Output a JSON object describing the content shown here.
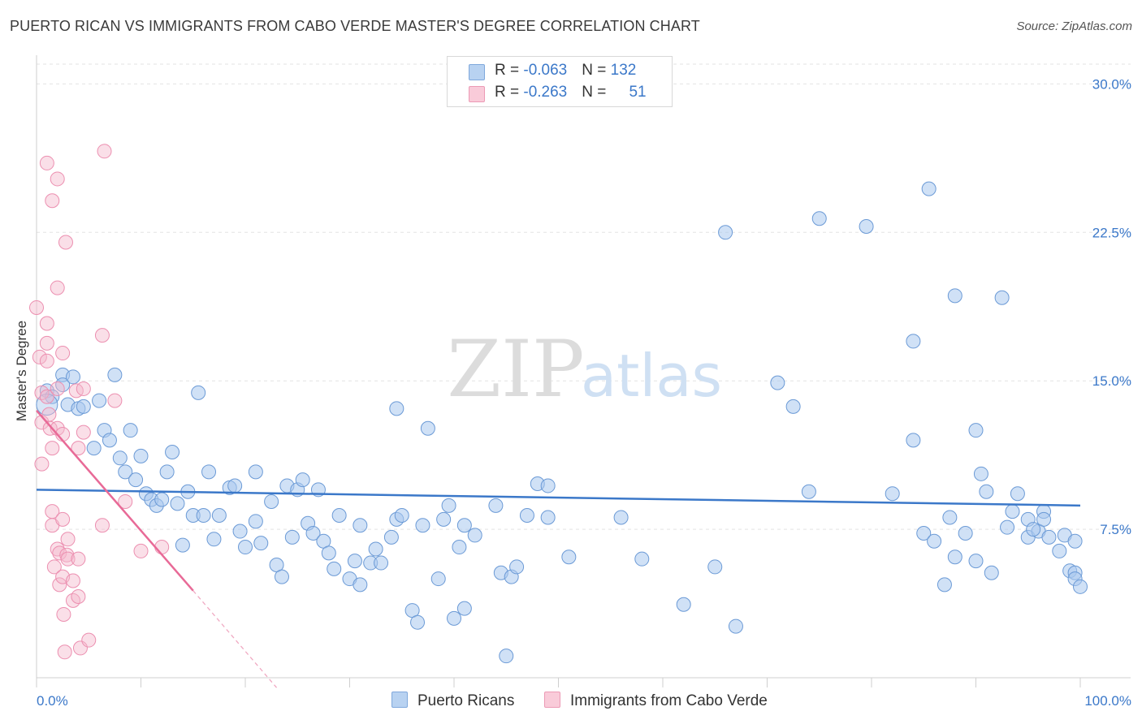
{
  "title": "PUERTO RICAN VS IMMIGRANTS FROM CABO VERDE MASTER'S DEGREE CORRELATION CHART",
  "source": "Source: ZipAtlas.com",
  "watermark": {
    "zip": "ZIP",
    "atlas": "atlas"
  },
  "colors": {
    "blue": "#3b78c9",
    "blue_fill": "#a9c8ee",
    "pink": "#e86a97",
    "pink_fill": "#f5b8cb"
  },
  "legend": {
    "rows": [
      {
        "r_label": "R = ",
        "r_value": "-0.063",
        "n_label": "N = ",
        "n_value": "132"
      },
      {
        "r_label": "R = ",
        "r_value": "-0.263",
        "n_label": "N = ",
        "n_value": "51"
      }
    ]
  },
  "bottom_legend": {
    "series1": "Puerto Ricans",
    "series2": "Immigrants from Cabo Verde"
  },
  "chart_data": {
    "type": "scatter",
    "title": "PUERTO RICAN VS IMMIGRANTS FROM CABO VERDE MASTER'S DEGREE CORRELATION CHART",
    "xlabel": "",
    "ylabel": "Master's Degree",
    "xlim": [
      0,
      100
    ],
    "ylim": [
      0,
      31
    ],
    "x_tick_labels": {
      "min": "0.0%",
      "max": "100.0%"
    },
    "y_ticks": [
      7.5,
      15.0,
      22.5,
      30.0
    ],
    "y_tick_labels": [
      "7.5%",
      "15.0%",
      "22.5%",
      "30.0%"
    ],
    "grid": true,
    "series": [
      {
        "name": "Puerto Ricans",
        "R": -0.063,
        "N": 132,
        "trend": {
          "x": [
            0,
            100
          ],
          "y": [
            9.5,
            8.7
          ]
        },
        "points": [
          [
            1,
            14.5
          ],
          [
            1.5,
            14.2
          ],
          [
            2.5,
            15.3
          ],
          [
            2.5,
            14.8
          ],
          [
            3,
            13.8
          ],
          [
            3.5,
            15.2
          ],
          [
            4,
            13.6
          ],
          [
            4.5,
            13.7
          ],
          [
            5.5,
            11.6
          ],
          [
            6,
            14.0
          ],
          [
            6.5,
            12.5
          ],
          [
            7,
            12.0
          ],
          [
            7.5,
            15.3
          ],
          [
            8,
            11.1
          ],
          [
            8.5,
            10.4
          ],
          [
            9,
            12.5
          ],
          [
            9.5,
            10.0
          ],
          [
            10,
            11.2
          ],
          [
            10.5,
            9.3
          ],
          [
            11,
            9.0
          ],
          [
            11.5,
            8.7
          ],
          [
            12,
            9.0
          ],
          [
            12.5,
            10.4
          ],
          [
            13,
            11.4
          ],
          [
            13.5,
            8.8
          ],
          [
            14,
            6.7
          ],
          [
            14.5,
            9.4
          ],
          [
            15,
            8.2
          ],
          [
            15.5,
            14.4
          ],
          [
            16,
            8.2
          ],
          [
            16.5,
            10.4
          ],
          [
            17,
            7.0
          ],
          [
            17.5,
            8.2
          ],
          [
            18.5,
            9.6
          ],
          [
            19,
            9.7
          ],
          [
            19.5,
            7.4
          ],
          [
            20,
            6.6
          ],
          [
            21,
            7.9
          ],
          [
            21.5,
            6.8
          ],
          [
            21,
            10.4
          ],
          [
            22.5,
            8.9
          ],
          [
            23,
            5.7
          ],
          [
            23.5,
            5.1
          ],
          [
            24,
            9.7
          ],
          [
            24.5,
            7.1
          ],
          [
            25,
            9.5
          ],
          [
            25.5,
            10.0
          ],
          [
            26,
            7.8
          ],
          [
            26.5,
            7.3
          ],
          [
            27,
            9.5
          ],
          [
            27.5,
            6.9
          ],
          [
            28,
            6.3
          ],
          [
            28.5,
            5.5
          ],
          [
            29,
            8.2
          ],
          [
            30,
            5.0
          ],
          [
            30.5,
            5.9
          ],
          [
            31,
            4.7
          ],
          [
            31,
            7.7
          ],
          [
            32,
            5.8
          ],
          [
            32.5,
            6.5
          ],
          [
            33,
            5.8
          ],
          [
            34,
            7.1
          ],
          [
            34.5,
            8.0
          ],
          [
            34.5,
            13.6
          ],
          [
            35,
            8.2
          ],
          [
            36,
            3.4
          ],
          [
            36.5,
            2.8
          ],
          [
            37,
            7.7
          ],
          [
            37.5,
            12.6
          ],
          [
            38.5,
            5.0
          ],
          [
            39,
            8.0
          ],
          [
            39.5,
            8.7
          ],
          [
            40,
            3.0
          ],
          [
            40.5,
            6.6
          ],
          [
            41,
            7.7
          ],
          [
            41,
            3.5
          ],
          [
            42,
            7.2
          ],
          [
            44,
            8.7
          ],
          [
            44.5,
            5.3
          ],
          [
            45,
            1.1
          ],
          [
            45.5,
            5.1
          ],
          [
            46,
            5.6
          ],
          [
            47,
            8.2
          ],
          [
            48,
            9.8
          ],
          [
            49,
            9.7
          ],
          [
            49,
            8.1
          ],
          [
            51,
            6.1
          ],
          [
            56,
            8.1
          ],
          [
            58,
            6.0
          ],
          [
            62,
            3.7
          ],
          [
            65,
            5.6
          ],
          [
            66,
            22.5
          ],
          [
            67,
            2.6
          ],
          [
            71,
            14.9
          ],
          [
            72.5,
            13.7
          ],
          [
            74,
            9.4
          ],
          [
            75,
            23.2
          ],
          [
            79.5,
            22.8
          ],
          [
            82,
            9.3
          ],
          [
            84,
            17.0
          ],
          [
            84,
            12.0
          ],
          [
            85,
            7.3
          ],
          [
            85.5,
            24.7
          ],
          [
            86,
            6.9
          ],
          [
            87,
            4.7
          ],
          [
            87.5,
            8.1
          ],
          [
            88,
            6.1
          ],
          [
            88,
            19.3
          ],
          [
            89,
            7.3
          ],
          [
            90,
            12.5
          ],
          [
            90.5,
            10.3
          ],
          [
            91,
            9.4
          ],
          [
            91.5,
            5.3
          ],
          [
            93,
            7.6
          ],
          [
            93.5,
            8.4
          ],
          [
            94,
            9.3
          ],
          [
            95,
            7.1
          ],
          [
            95,
            8.0
          ],
          [
            96,
            7.4
          ],
          [
            96.5,
            8.4
          ],
          [
            97,
            7.1
          ],
          [
            98,
            6.4
          ],
          [
            99,
            5.4
          ],
          [
            99.5,
            5.3
          ],
          [
            99.5,
            5.0
          ],
          [
            100,
            4.6
          ],
          [
            92.5,
            19.2
          ],
          [
            95.5,
            7.5
          ],
          [
            90,
            5.9
          ],
          [
            96.5,
            8.0
          ],
          [
            98.5,
            7.2
          ],
          [
            99.5,
            6.9
          ]
        ]
      },
      {
        "name": "Immigrants from Cabo Verde",
        "R": -0.263,
        "N": 51,
        "trend": {
          "x": [
            0,
            15
          ],
          "y": [
            13.5,
            4.4
          ]
        },
        "trend_dashed": {
          "x": [
            15,
            23
          ],
          "y": [
            4.4,
            -0.5
          ]
        },
        "points": [
          [
            0,
            18.7
          ],
          [
            0.3,
            16.2
          ],
          [
            0.5,
            14.4
          ],
          [
            0.5,
            12.9
          ],
          [
            0.5,
            10.8
          ],
          [
            1,
            26.0
          ],
          [
            1,
            17.9
          ],
          [
            1,
            16.9
          ],
          [
            1,
            16.0
          ],
          [
            1,
            14.2
          ],
          [
            1.2,
            13.3
          ],
          [
            1.3,
            12.6
          ],
          [
            1.5,
            24.1
          ],
          [
            1.5,
            11.6
          ],
          [
            1.5,
            8.4
          ],
          [
            1.5,
            7.7
          ],
          [
            1.7,
            5.6
          ],
          [
            2,
            25.2
          ],
          [
            2,
            19.7
          ],
          [
            2,
            14.6
          ],
          [
            2,
            12.6
          ],
          [
            2,
            6.5
          ],
          [
            2.2,
            6.3
          ],
          [
            2.2,
            4.7
          ],
          [
            2.5,
            16.4
          ],
          [
            2.5,
            12.3
          ],
          [
            2.5,
            8.0
          ],
          [
            2.5,
            5.1
          ],
          [
            2.6,
            3.2
          ],
          [
            2.7,
            1.3
          ],
          [
            2.8,
            22.0
          ],
          [
            2.9,
            6.2
          ],
          [
            3,
            7.0
          ],
          [
            3,
            6.0
          ],
          [
            3.5,
            4.9
          ],
          [
            3.5,
            3.9
          ],
          [
            3.8,
            14.5
          ],
          [
            4,
            6.0
          ],
          [
            4,
            4.1
          ],
          [
            4,
            11.6
          ],
          [
            4.2,
            1.5
          ],
          [
            4.5,
            12.4
          ],
          [
            4.5,
            14.6
          ],
          [
            5,
            1.9
          ],
          [
            6.3,
            17.3
          ],
          [
            6.3,
            7.7
          ],
          [
            6.5,
            26.6
          ],
          [
            7.5,
            14.0
          ],
          [
            8.5,
            8.9
          ],
          [
            10,
            6.4
          ],
          [
            12,
            6.6
          ]
        ]
      }
    ]
  }
}
